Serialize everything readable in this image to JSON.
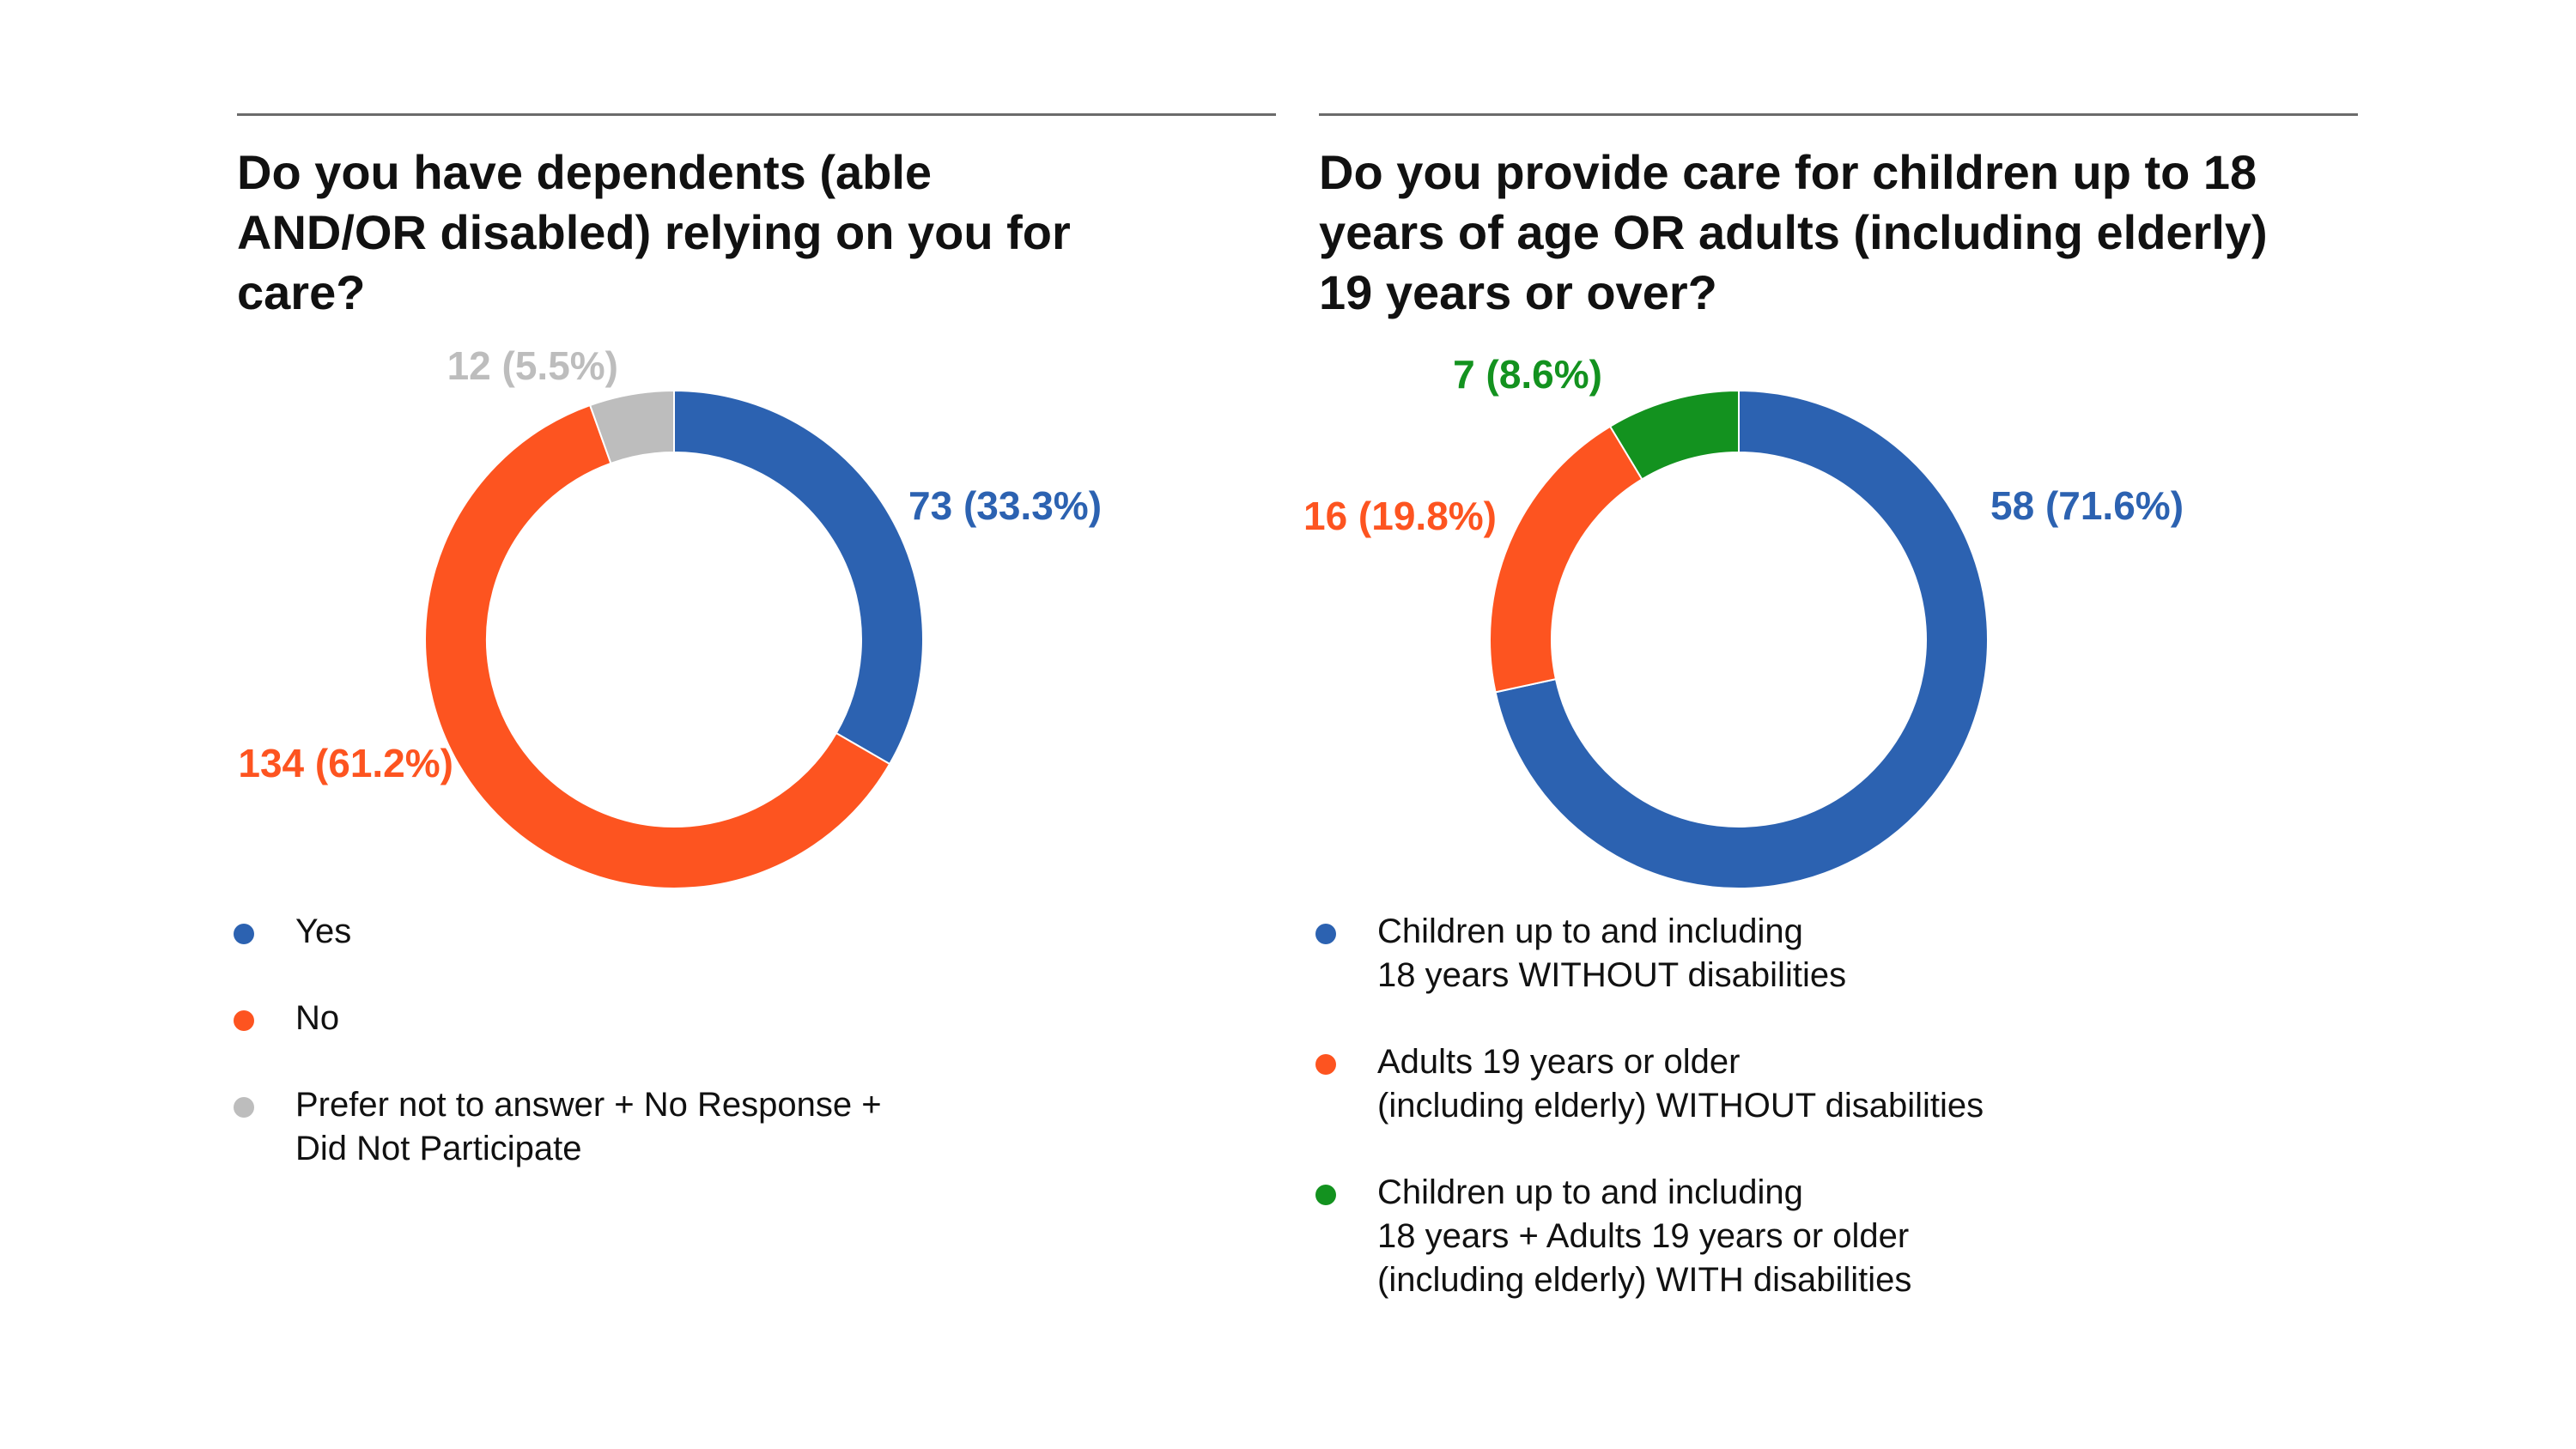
{
  "colors": {
    "blue": "#2c62b1",
    "orange": "#fd5420",
    "gray": "#bdbdbd",
    "green": "#13921f"
  },
  "chart_data": [
    {
      "type": "pie",
      "donut": true,
      "title": "Do you have dependents (able AND/OR disabled) relying on you for care?",
      "categories": [
        "Yes",
        "No",
        "Prefer not to answer + No Response + Did Not Participate"
      ],
      "values": [
        73,
        134,
        12
      ],
      "labels": [
        "73 (33.3%)",
        "134 (61.2%)",
        "12 (5.5%)"
      ],
      "colors": [
        "#2c62b1",
        "#fd5420",
        "#bdbdbd"
      ],
      "legend": [
        {
          "lines": [
            "Yes"
          ]
        },
        {
          "lines": [
            "No"
          ]
        },
        {
          "lines": [
            "Prefer not to answer + No Response +",
            "Did Not Participate"
          ]
        }
      ]
    },
    {
      "type": "pie",
      "donut": true,
      "title": "Do you provide care for children up to 18 years of age OR adults (including elderly) 19 years or over?",
      "categories": [
        "Children up to and including 18 years WITHOUT disabilities",
        "Adults 19 years or older (including elderly) WITHOUT disabilities",
        "Children up to and including 18 years + Adults 19 years or older (including elderly) WITH disabilities"
      ],
      "values": [
        58,
        16,
        7
      ],
      "labels": [
        "58 (71.6%)",
        "16 (19.8%)",
        "7 (8.6%)"
      ],
      "colors": [
        "#2c62b1",
        "#fd5420",
        "#13921f"
      ],
      "legend": [
        {
          "lines": [
            "Children up to and including",
            "18 years WITHOUT disabilities"
          ]
        },
        {
          "lines": [
            "Adults 19 years or older",
            "(including elderly) WITHOUT disabilities"
          ]
        },
        {
          "lines": [
            "Children up to and including",
            "18 years + Adults 19 years or older",
            "(including elderly) WITH disabilities"
          ]
        }
      ]
    }
  ]
}
